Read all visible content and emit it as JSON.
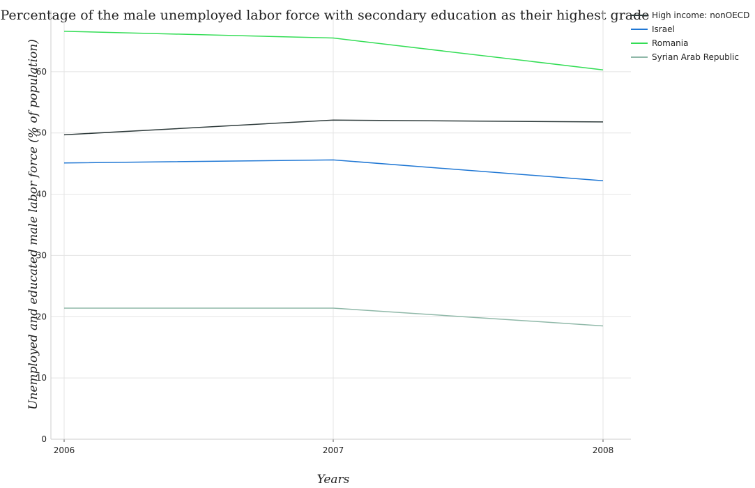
{
  "chart_data": {
    "type": "line",
    "title": "Percentage of the male unemployed labor force with secondary education as their highest grade",
    "xlabel": "Years",
    "ylabel": "Unemployed and educated male labor force (% of population)",
    "categories": [
      "2006",
      "2007",
      "2008"
    ],
    "ylim": [
      0,
      70
    ],
    "yticks": [
      0,
      10,
      20,
      30,
      40,
      50,
      60
    ],
    "grid": true,
    "legend_position": "top-right",
    "series": [
      {
        "name": "High income: nonOECD",
        "color": "#2e3b3b",
        "values": [
          49.7,
          52.1,
          51.8
        ]
      },
      {
        "name": "Israel",
        "color": "#1f77d4",
        "values": [
          45.1,
          45.6,
          42.2
        ]
      },
      {
        "name": "Romania",
        "color": "#33dd55",
        "values": [
          66.6,
          65.5,
          60.3
        ]
      },
      {
        "name": "Syrian Arab Republic",
        "color": "#8fb8a8",
        "values": [
          21.4,
          21.4,
          18.5
        ]
      }
    ]
  }
}
